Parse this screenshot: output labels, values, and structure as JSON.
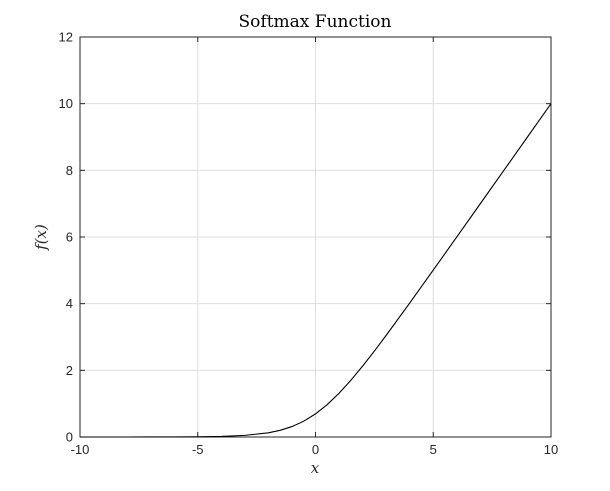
{
  "chart_data": {
    "type": "line",
    "title": "Softmax Function",
    "xlabel": "x",
    "ylabel": "f(x)",
    "xlim": [
      -10,
      10
    ],
    "ylim": [
      0,
      12
    ],
    "xticks": [
      -10,
      -5,
      0,
      5,
      10
    ],
    "xtick_labels": [
      "-10",
      "-5",
      "0",
      "5",
      "10"
    ],
    "yticks": [
      0,
      2,
      4,
      6,
      8,
      10,
      12
    ],
    "ytick_labels": [
      "0",
      "2",
      "4",
      "6",
      "8",
      "10",
      "12"
    ],
    "grid": true,
    "series": [
      {
        "color": "#000000",
        "x": [
          -10,
          -9,
          -8,
          -7,
          -6,
          -5,
          -4,
          -3,
          -2,
          -1.5,
          -1,
          -0.5,
          0,
          0.5,
          1,
          1.5,
          2,
          2.5,
          3,
          4,
          5,
          6,
          7,
          8,
          9,
          10
        ],
        "y": [
          4.54e-05,
          0.000123,
          0.000335,
          0.000911,
          0.00248,
          0.00672,
          0.0181,
          0.0486,
          0.127,
          0.201,
          0.313,
          0.474,
          0.693,
          0.974,
          1.313,
          1.701,
          2.127,
          2.579,
          3.049,
          4.018,
          5.007,
          6.002,
          7.001,
          8.0,
          9.0,
          10.0
        ]
      }
    ]
  }
}
